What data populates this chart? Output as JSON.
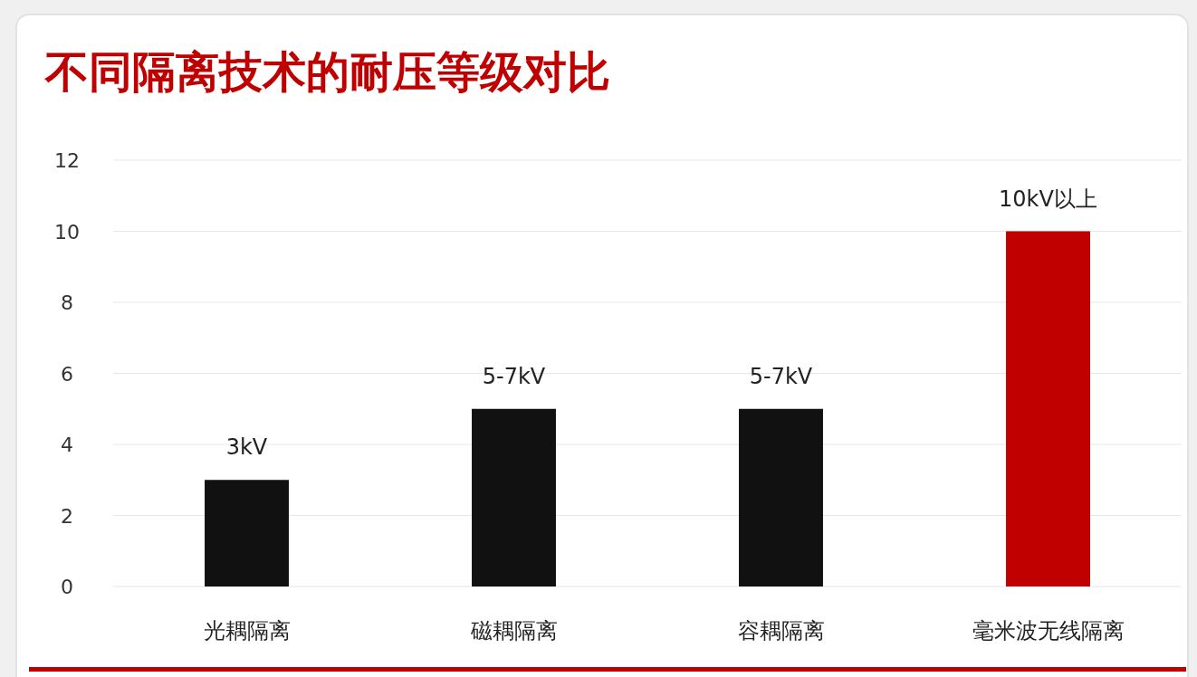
{
  "chart_data": {
    "type": "bar",
    "title": "不同隔离技术的耐压等级对比",
    "categories": [
      "光耦隔离",
      "磁耦隔离",
      "容耦隔离",
      "毫米波无线隔离"
    ],
    "values": [
      3,
      5,
      5,
      10
    ],
    "colors": [
      "#111111",
      "#111111",
      "#111111",
      "#c00000"
    ],
    "value_labels": [
      "3kV",
      "5-7kV",
      "5-7kV",
      "10kV以上"
    ],
    "ylim": [
      0,
      12
    ],
    "yticks": [
      0,
      2,
      4,
      6,
      8,
      10,
      12
    ],
    "grid": "y"
  }
}
